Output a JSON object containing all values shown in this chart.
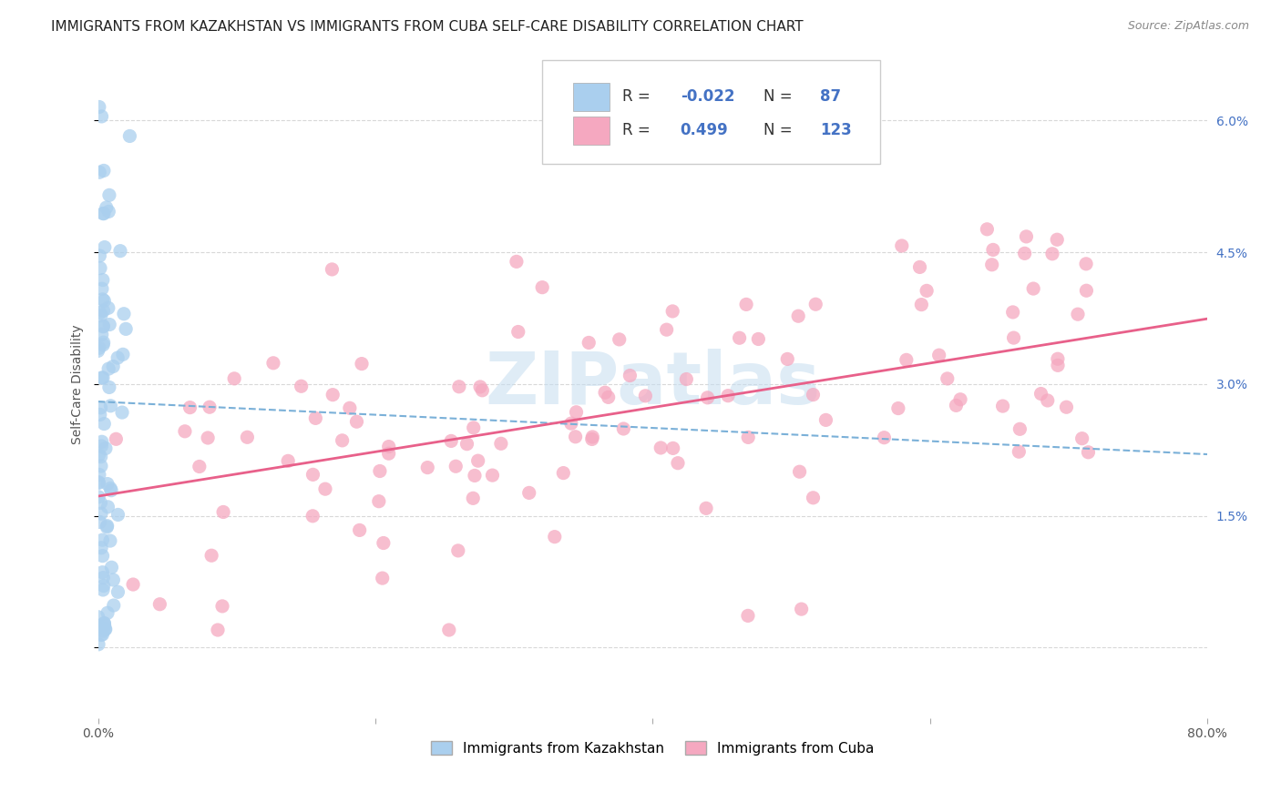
{
  "title": "IMMIGRANTS FROM KAZAKHSTAN VS IMMIGRANTS FROM CUBA SELF-CARE DISABILITY CORRELATION CHART",
  "source": "Source: ZipAtlas.com",
  "ylabel": "Self-Care Disability",
  "y_ticks_right": [
    0.0,
    0.015,
    0.03,
    0.045,
    0.06
  ],
  "y_tick_labels_right": [
    "",
    "1.5%",
    "3.0%",
    "4.5%",
    "6.0%"
  ],
  "xlim": [
    0.0,
    0.8
  ],
  "ylim": [
    -0.008,
    0.068
  ],
  "kazakhstan_color": "#aacfee",
  "cuba_color": "#f5a8c0",
  "kazakhstan_R": -0.022,
  "kazakhstan_N": 87,
  "cuba_R": 0.499,
  "cuba_N": 123,
  "kaz_trend_color": "#7ab0d8",
  "cuba_trend_color": "#e8608a",
  "watermark": "ZIPatlas",
  "background_color": "#ffffff",
  "grid_color": "#d8d8d8",
  "title_fontsize": 11,
  "tick_fontsize": 10,
  "legend_fontsize": 12,
  "source_fontsize": 9
}
